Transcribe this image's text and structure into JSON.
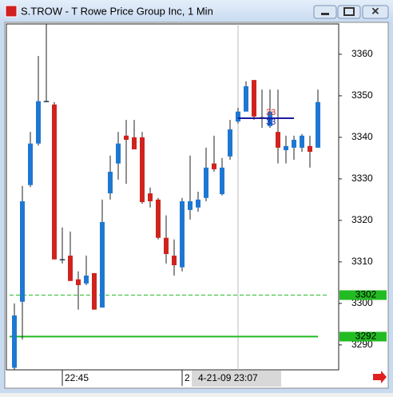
{
  "window_title": "S.TROW - T Rowe Price Group Inc, 1 Min",
  "chart_data": {
    "type": "candlestick",
    "up_color": "#1e78d2",
    "down_color": "#d0231e",
    "open": [
      3284.5,
      3300.4,
      3328.5,
      3338.5,
      3348.7,
      3347.9,
      3310.6,
      3311.5,
      3305.8,
      3304.8,
      3307.3,
      3299,
      3326.5,
      3333.7,
      3340.4,
      3340,
      3340,
      3326.5,
      3325,
      3315.8,
      3311.5,
      3308.7,
      3322.5,
      3323.1,
      3325.4,
      3333.7,
      3326.3,
      3335.4,
      3343.8,
      3346.2,
      3353.8,
      3344.8,
      3342.7,
      3341.3,
      3336.9,
      3337.5,
      3337.5,
      3337.9,
      3337.5
    ],
    "high": [
      3300,
      3328.3,
      3341.3,
      3359.6,
      3367.3,
      3348.5,
      3318.3,
      3317.3,
      3307.7,
      3311.5,
      3307.3,
      3325,
      3335.6,
      3341.3,
      3344.2,
      3344.2,
      3341.3,
      3327.9,
      3325.4,
      3321.2,
      3315.4,
      3325.4,
      3335.6,
      3326.9,
      3337.5,
      3340.4,
      3335,
      3344.2,
      3347.1,
      3353.5,
      3353.8,
      3351.5,
      3351.5,
      3351.5,
      3340.4,
      3340.4,
      3340.8,
      3340.4,
      3351.5
    ],
    "low": [
      3284,
      3291.3,
      3328,
      3338,
      3348.5,
      3310.6,
      3309.6,
      3305.4,
      3298.5,
      3304.4,
      3298.5,
      3299,
      3325,
      3329.8,
      3328.8,
      3337.5,
      3324,
      3323.1,
      3315.4,
      3309.6,
      3306.7,
      3307.7,
      3320.2,
      3322.1,
      3324.6,
      3331.7,
      3326,
      3334.6,
      3343.3,
      3346.2,
      3344.2,
      3342.3,
      3342.3,
      3333.7,
      3333.7,
      3334.6,
      3336.5,
      3332.7,
      3337.5
    ],
    "close": [
      3297.1,
      3324.6,
      3338.5,
      3348.7,
      3348.7,
      3310.6,
      3310.6,
      3305.4,
      3304.4,
      3306.7,
      3298.5,
      3319.6,
      3331.7,
      3338.5,
      3339.4,
      3337.1,
      3324.4,
      3324.6,
      3315.8,
      3311.9,
      3309.2,
      3324.6,
      3324.6,
      3325,
      3332.7,
      3332.3,
      3332.7,
      3341.9,
      3346.2,
      3352.3,
      3345,
      3344.8,
      3346.2,
      3337.5,
      3337.9,
      3339.4,
      3340.4,
      3336.5,
      3348.5
    ],
    "ylim": [
      3284,
      3367.3
    ],
    "yticks": [
      3290,
      3300,
      3310,
      3320,
      3330,
      3340,
      3350,
      3360
    ],
    "xticks": [
      {
        "value": 6,
        "label": "22:45"
      },
      {
        "value": 21,
        "label": "2"
      }
    ],
    "cursor": {
      "value": 28,
      "label": "4-21-09  23:07"
    },
    "levels": [
      {
        "value": 3302,
        "color": "#22bb22",
        "style": "dashed"
      },
      {
        "value": 3292,
        "color": "#22bb22",
        "style": "solid"
      }
    ],
    "hline": {
      "value": 3344.6,
      "from": 28,
      "to": 35,
      "color": "#1a1aa0"
    },
    "annotations": [
      {
        "text": "33",
        "color": "#d0231e"
      },
      {
        "text": "33",
        "color": "#1a1aa0"
      }
    ]
  }
}
